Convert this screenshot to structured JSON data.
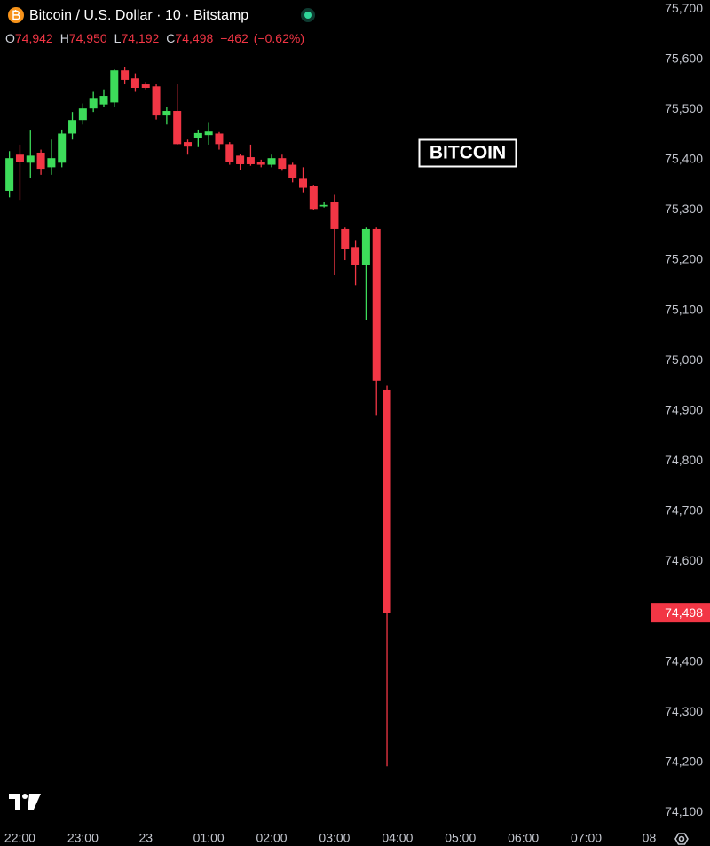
{
  "chart_data": {
    "type": "candlestick",
    "title": "Bitcoin / U.S. Dollar · 10 · Bitstamp",
    "header": {
      "labels": [
        "O",
        "H",
        "L",
        "C"
      ],
      "values": [
        74942,
        74950,
        74192,
        74498
      ],
      "value_labels": [
        "74,942",
        "74,950",
        "74,192",
        "74,498"
      ],
      "change": -462,
      "change_label": "−462",
      "change_pct": -0.62,
      "change_pct_label": "(−0.62%)"
    },
    "annotation": "BITCOIN",
    "up_color": "#3ddc5a",
    "down_color": "#f23645",
    "x": [
      "21:50",
      "22:00",
      "22:10",
      "22:20",
      "22:30",
      "22:40",
      "22:50",
      "23:00",
      "23:10",
      "23:20",
      "23:30",
      "23:40",
      "23:50",
      "00:00",
      "00:10",
      "00:20",
      "00:30",
      "00:40",
      "00:50",
      "01:00",
      "01:10",
      "01:20",
      "01:30",
      "01:40",
      "01:50",
      "02:00",
      "02:10",
      "02:20",
      "02:30",
      "02:40",
      "02:50",
      "03:00",
      "03:10",
      "03:20",
      "03:30",
      "03:40",
      "03:50"
    ],
    "open": [
      75338,
      75410,
      75394,
      75414,
      75385,
      75394,
      75452,
      75479,
      75502,
      75510,
      75514,
      75578,
      75562,
      75550,
      75546,
      75488,
      75497,
      75435,
      75444,
      75449,
      75452,
      75431,
      75408,
      75405,
      75395,
      75390,
      75403,
      75390,
      75362,
      75347,
      75307,
      75315,
      75262,
      75226,
      75190,
      75262,
      74942
    ],
    "high": [
      75417,
      75430,
      75458,
      75420,
      75440,
      75460,
      75495,
      75512,
      75535,
      75540,
      75580,
      75585,
      75572,
      75555,
      75550,
      75505,
      75550,
      75440,
      75460,
      75475,
      75455,
      75435,
      75412,
      75430,
      75400,
      75410,
      75410,
      75394,
      75385,
      75350,
      75315,
      75330,
      75265,
      75240,
      75265,
      75265,
      74950
    ],
    "low": [
      75325,
      75320,
      75364,
      75370,
      75370,
      75385,
      75440,
      75470,
      75495,
      75505,
      75505,
      75550,
      75535,
      75540,
      75480,
      75470,
      75430,
      75410,
      75425,
      75430,
      75420,
      75390,
      75380,
      75388,
      75385,
      75385,
      75378,
      75355,
      75335,
      75300,
      75305,
      75170,
      75200,
      75150,
      75080,
      74890,
      74192
    ],
    "close": [
      75403,
      75395,
      75408,
      75382,
      75403,
      75452,
      75479,
      75502,
      75523,
      75527,
      75578,
      75559,
      75543,
      75543,
      75488,
      75497,
      75431,
      75426,
      75453,
      75456,
      75431,
      75396,
      75391,
      75391,
      75390,
      75403,
      75382,
      75364,
      75344,
      75302,
      75310,
      75262,
      75222,
      75190,
      75262,
      74960,
      74498
    ],
    "last_price": {
      "value": 74498,
      "label": "74,498"
    },
    "xlim": [
      "21:41",
      "08:03"
    ],
    "xticks": [
      "22:00",
      "23:00",
      {
        "value": "00:00",
        "label": "23"
      },
      "01:00",
      "02:00",
      "03:00",
      "04:00",
      "05:00",
      "06:00",
      "07:00",
      {
        "value": "08:00",
        "label": "08"
      }
    ],
    "ylim": [
      74074,
      75718
    ],
    "yticks": [
      {
        "value": 74100,
        "label": "74,100"
      },
      {
        "value": 74200,
        "label": "74,200"
      },
      {
        "value": 74300,
        "label": "74,300"
      },
      {
        "value": 74400,
        "label": "74,400"
      },
      {
        "value": 74500,
        "label": "74,500"
      },
      {
        "value": 74600,
        "label": "74,600"
      },
      {
        "value": 74700,
        "label": "74,700"
      },
      {
        "value": 74800,
        "label": "74,800"
      },
      {
        "value": 74900,
        "label": "74,900"
      },
      {
        "value": 75000,
        "label": "75,000"
      },
      {
        "value": 75100,
        "label": "75,100"
      },
      {
        "value": 75200,
        "label": "75,200"
      },
      {
        "value": 75300,
        "label": "75,300"
      },
      {
        "value": 75400,
        "label": "75,400"
      },
      {
        "value": 75500,
        "label": "75,500"
      },
      {
        "value": 75600,
        "label": "75,600"
      },
      {
        "value": 75700,
        "label": "75,700"
      }
    ],
    "grid": false
  }
}
